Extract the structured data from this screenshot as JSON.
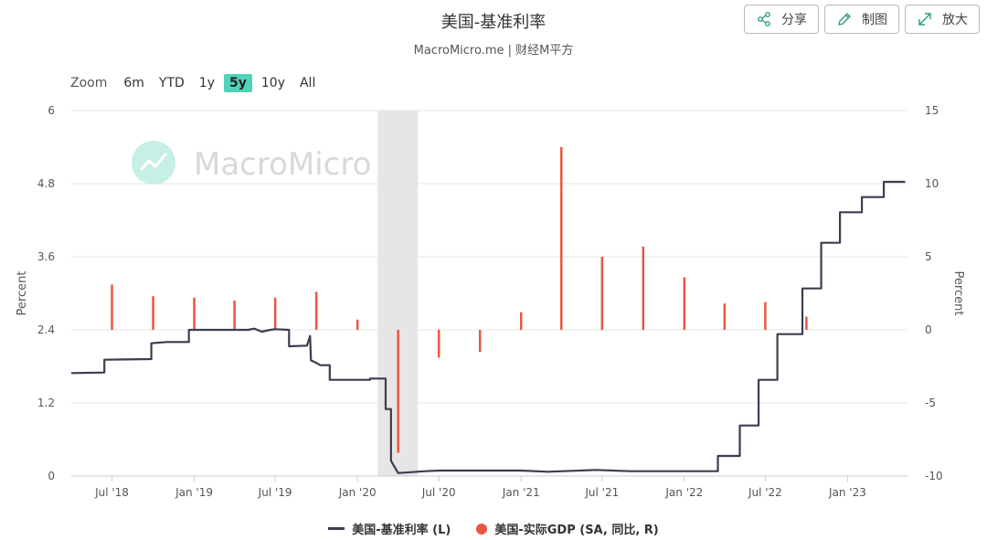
{
  "header": {
    "title": "美国-基准利率",
    "subtitle": "MacroMicro.me | 财经M平方"
  },
  "toolbar": {
    "share_label": "分享",
    "draw_label": "制图",
    "expand_label": "放大"
  },
  "zoom": {
    "label": "Zoom",
    "options": [
      "6m",
      "YTD",
      "1y",
      "5y",
      "10y",
      "All"
    ],
    "active": "5y"
  },
  "watermark": {
    "text": "MacroMicro"
  },
  "colors": {
    "rate_line": "#3b3d50",
    "gdp_bar": "#e95741",
    "zoom_active": "#4fd4b9",
    "shade": "#e6e6e6"
  },
  "chart_data": {
    "type": "line",
    "left_axis": {
      "title": "Percent",
      "range": [
        0,
        6
      ],
      "ticks": [
        "0",
        "1.2",
        "2.4",
        "3.6",
        "4.8",
        "6"
      ]
    },
    "right_axis": {
      "title": "Percent",
      "range": [
        -10,
        15
      ],
      "ticks": [
        "-10",
        "-5",
        "0",
        "5",
        "10",
        "15"
      ]
    },
    "x_axis": {
      "range": [
        "2018-04-01",
        "2023-05-15"
      ],
      "ticks": [
        {
          "label": "Jul '18",
          "date": "2018-07-01"
        },
        {
          "label": "Jan '19",
          "date": "2019-01-01"
        },
        {
          "label": "Jul '19",
          "date": "2019-07-01"
        },
        {
          "label": "Jan '20",
          "date": "2020-01-01"
        },
        {
          "label": "Jul '20",
          "date": "2020-07-01"
        },
        {
          "label": "Jan '21",
          "date": "2021-01-01"
        },
        {
          "label": "Jul '21",
          "date": "2021-07-01"
        },
        {
          "label": "Jan '22",
          "date": "2022-01-01"
        },
        {
          "label": "Jul '22",
          "date": "2022-07-01"
        },
        {
          "label": "Jan '23",
          "date": "2023-01-01"
        }
      ]
    },
    "shaded_region": {
      "start": "2020-02-15",
      "end": "2020-05-15"
    },
    "series": [
      {
        "name": "美国-基准利率 (L)",
        "type": "line",
        "axis": "left",
        "points": [
          [
            "2018-04-01",
            1.69
          ],
          [
            "2018-06-14",
            1.7
          ],
          [
            "2018-06-14",
            1.91
          ],
          [
            "2018-09-27",
            1.92
          ],
          [
            "2018-09-27",
            2.18
          ],
          [
            "2018-11-01",
            2.2
          ],
          [
            "2018-12-20",
            2.2
          ],
          [
            "2018-12-20",
            2.4
          ],
          [
            "2019-05-01",
            2.4
          ],
          [
            "2019-05-15",
            2.42
          ],
          [
            "2019-06-01",
            2.37
          ],
          [
            "2019-06-20",
            2.4
          ],
          [
            "2019-07-01",
            2.41
          ],
          [
            "2019-08-01",
            2.4
          ],
          [
            "2019-08-01",
            2.13
          ],
          [
            "2019-09-10",
            2.14
          ],
          [
            "2019-09-17",
            2.3
          ],
          [
            "2019-09-19",
            1.9
          ],
          [
            "2019-10-03",
            1.85
          ],
          [
            "2019-10-10",
            1.82
          ],
          [
            "2019-10-31",
            1.82
          ],
          [
            "2019-10-31",
            1.58
          ],
          [
            "2020-01-29",
            1.58
          ],
          [
            "2020-01-29",
            1.6
          ],
          [
            "2020-03-04",
            1.6
          ],
          [
            "2020-03-04",
            1.1
          ],
          [
            "2020-03-16",
            1.1
          ],
          [
            "2020-03-16",
            0.25
          ],
          [
            "2020-04-01",
            0.05
          ],
          [
            "2020-06-01",
            0.08
          ],
          [
            "2020-07-01",
            0.09
          ],
          [
            "2021-01-01",
            0.09
          ],
          [
            "2021-03-01",
            0.07
          ],
          [
            "2021-06-17",
            0.1
          ],
          [
            "2021-09-01",
            0.08
          ],
          [
            "2022-03-17",
            0.08
          ],
          [
            "2022-03-17",
            0.33
          ],
          [
            "2022-05-05",
            0.33
          ],
          [
            "2022-05-05",
            0.83
          ],
          [
            "2022-06-16",
            0.83
          ],
          [
            "2022-06-16",
            1.58
          ],
          [
            "2022-07-28",
            1.58
          ],
          [
            "2022-07-28",
            2.33
          ],
          [
            "2022-09-22",
            2.33
          ],
          [
            "2022-09-22",
            3.08
          ],
          [
            "2022-11-03",
            3.08
          ],
          [
            "2022-11-03",
            3.83
          ],
          [
            "2022-12-15",
            3.83
          ],
          [
            "2022-12-15",
            4.33
          ],
          [
            "2023-02-02",
            4.33
          ],
          [
            "2023-02-02",
            4.58
          ],
          [
            "2023-03-23",
            4.58
          ],
          [
            "2023-03-23",
            4.83
          ],
          [
            "2023-05-10",
            4.83
          ]
        ]
      },
      {
        "name": "美国-实际GDP (SA, 同比, R)",
        "type": "bar",
        "axis": "right",
        "points": [
          [
            "2018-07-01",
            3.1
          ],
          [
            "2018-10-01",
            2.3
          ],
          [
            "2019-01-01",
            2.2
          ],
          [
            "2019-04-01",
            2.0
          ],
          [
            "2019-07-01",
            2.2
          ],
          [
            "2019-10-01",
            2.6
          ],
          [
            "2020-01-01",
            0.7
          ],
          [
            "2020-04-01",
            -8.4
          ],
          [
            "2020-07-01",
            -1.9
          ],
          [
            "2020-10-01",
            -1.5
          ],
          [
            "2021-01-01",
            1.2
          ],
          [
            "2021-04-01",
            12.5
          ],
          [
            "2021-07-01",
            5.0
          ],
          [
            "2021-10-01",
            5.7
          ],
          [
            "2022-01-01",
            3.6
          ],
          [
            "2022-04-01",
            1.8
          ],
          [
            "2022-07-01",
            1.9
          ],
          [
            "2022-10-01",
            0.9
          ]
        ]
      }
    ],
    "legend": {
      "placement": "bottom-center"
    }
  }
}
